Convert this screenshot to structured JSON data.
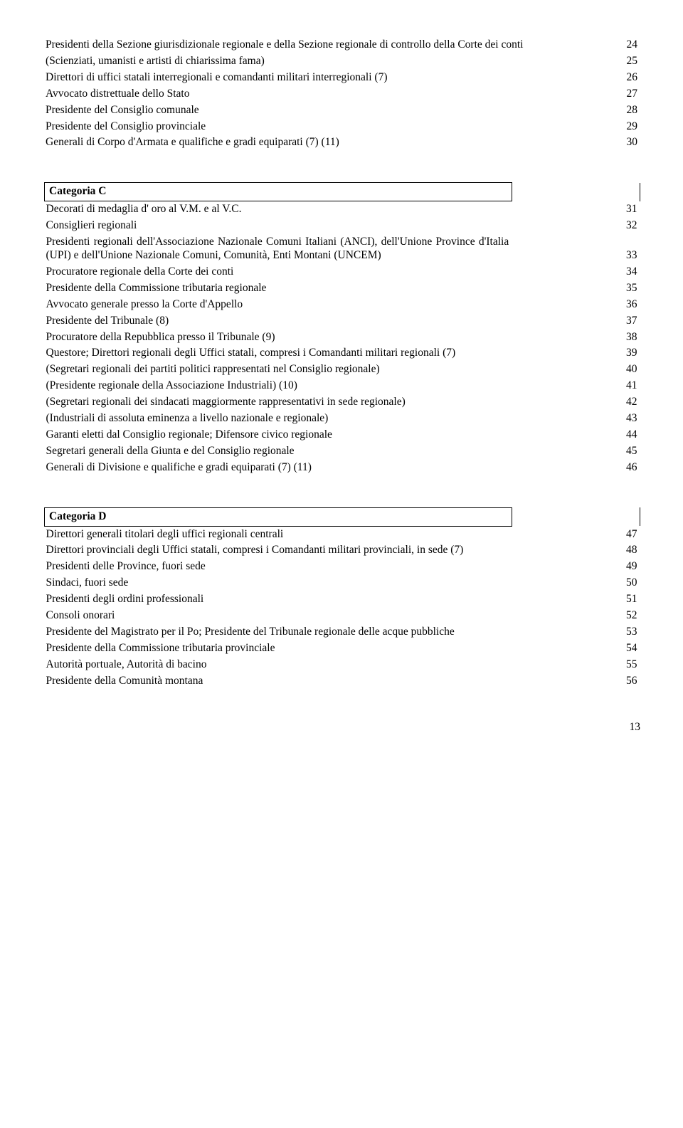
{
  "page_number": "13",
  "tables": [
    {
      "rows": [
        {
          "text": "Presidenti della Sezione giurisdizionale regionale e della Sezione regionale di controllo della Corte dei conti",
          "num": "24"
        },
        {
          "text": "(Scienziati, umanisti e artisti di chiarissima fama)",
          "num": "25"
        },
        {
          "text": "Direttori di uffici statali interregionali e comandanti militari interregionali (7)",
          "num": "26"
        },
        {
          "text": "Avvocato distrettuale dello Stato",
          "num": "27"
        },
        {
          "text": "Presidente del Consiglio comunale",
          "num": "28"
        },
        {
          "text": "Presidente del Consiglio provinciale",
          "num": "29"
        },
        {
          "text": "Generali di Corpo d'Armata e qualifiche e gradi equiparati (7) (11)",
          "num": "30"
        }
      ]
    },
    {
      "header": "Categoria C",
      "rows": [
        {
          "text": "Decorati di medaglia d' oro al V.M. e al V.C.",
          "num": "31"
        },
        {
          "text": "Consiglieri regionali",
          "num": "32"
        },
        {
          "text": "Presidenti regionali dell'Associazione Nazionale Comuni Italiani (ANCI), dell'Unione Province d'Italia (UPI) e dell'Unione Nazionale Comuni, Comunità, Enti Montani (UNCEM)",
          "num": "33"
        },
        {
          "text": "Procuratore regionale della Corte dei conti",
          "num": "34"
        },
        {
          "text": "Presidente della Commissione tributaria regionale",
          "num": "35"
        },
        {
          "text": "Avvocato generale presso la Corte d'Appello",
          "num": "36"
        },
        {
          "text": "Presidente del Tribunale (8)",
          "num": "37"
        },
        {
          "text": "Procuratore della Repubblica presso il Tribunale (9)",
          "num": "38"
        },
        {
          "text": "Questore; Direttori regionali degli Uffici statali, compresi i Comandanti militari regionali (7)",
          "num": "39"
        },
        {
          "text": "(Segretari regionali dei partiti politici rappresentati nel Consiglio regionale)",
          "num": "40"
        },
        {
          "text": "(Presidente regionale della Associazione Industriali) (10)",
          "num": "41"
        },
        {
          "text": "(Segretari regionali dei sindacati maggiormente rappresentativi in sede regionale)",
          "num": "42"
        },
        {
          "text": "(Industriali di assoluta eminenza a livello nazionale e regionale)",
          "num": "43"
        },
        {
          "text": "Garanti eletti dal Consiglio regionale; Difensore civico regionale",
          "num": "44"
        },
        {
          "text": "Segretari generali della Giunta e del Consiglio regionale",
          "num": "45"
        },
        {
          "text": "Generali di Divisione e qualifiche e gradi equiparati (7) (11)",
          "num": "46"
        }
      ]
    },
    {
      "header": "Categoria D",
      "rows": [
        {
          "text": "Direttori generali titolari degli uffici regionali centrali",
          "num": "47"
        },
        {
          "text": "Direttori provinciali degli Uffici statali, compresi i Comandanti militari provinciali, in sede (7)",
          "num": "48"
        },
        {
          "text": "Presidenti delle Province, fuori sede",
          "num": "49"
        },
        {
          "text": "Sindaci, fuori sede",
          "num": "50"
        },
        {
          "text": "Presidenti degli ordini professionali",
          "num": "51"
        },
        {
          "text": "Consoli onorari",
          "num": "52"
        },
        {
          "text": "Presidente del Magistrato per il Po; Presidente del Tribunale regionale delle acque pubbliche",
          "num": "53"
        },
        {
          "text": "Presidente della Commissione tributaria provinciale",
          "num": "54"
        },
        {
          "text": "Autorità portuale, Autorità di bacino",
          "num": "55"
        },
        {
          "text": "Presidente della Comunità montana",
          "num": "56"
        }
      ]
    }
  ]
}
